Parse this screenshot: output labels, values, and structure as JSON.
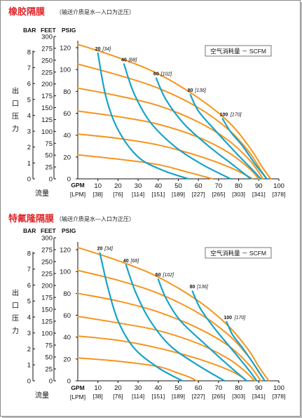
{
  "charts": [
    {
      "title": "橡胶隔膜",
      "note": "（输送介质是水—入口为正压）",
      "legend": "空气消耗量 － SCFM",
      "y_label_chars": [
        "出",
        "口",
        "压",
        "力"
      ],
      "x_label": "流量"
    },
    {
      "title": "特氟隆隔膜",
      "note": "（输送介质是水—入口为正压）",
      "legend": "空气消耗量 － SCFM",
      "y_label_chars": [
        "出",
        "口",
        "压",
        "力"
      ],
      "x_label": "流量"
    }
  ],
  "axis_headers": {
    "bar": "BAR",
    "feet": "FEET",
    "psig": "PSIG",
    "gpm": "GPM",
    "lpm": "[LPM]"
  },
  "bar_ticks": [
    "0",
    "1",
    "2",
    "3",
    "4",
    "5",
    "6",
    "7",
    "8"
  ],
  "feet_ticks": [
    "0",
    "25",
    "50",
    "75",
    "100",
    "125",
    "150",
    "175",
    "200",
    "225",
    "250",
    "275",
    "300"
  ],
  "psig_ticks": [
    "0",
    "20",
    "40",
    "60",
    "80",
    "100",
    "120"
  ],
  "gpm_ticks": [
    "10",
    "20",
    "30",
    "40",
    "50",
    "60",
    "70",
    "80",
    "90",
    "100"
  ],
  "lpm_ticks": [
    "[38]",
    "[76]",
    "[114]",
    "[151]",
    "[189]",
    "[227]",
    "[265]",
    "[303]",
    "[341]",
    "[378]"
  ],
  "colors": {
    "pressure_curve": "#f7941d",
    "air_curve": "#16a3c9",
    "title": "#e0282c"
  },
  "chart_data": [
    {
      "type": "line",
      "title": "橡胶隔膜",
      "xlabel": "流量",
      "ylabel": "出口压力",
      "xlim": [
        0,
        100
      ],
      "ylim": [
        0,
        120
      ],
      "grid": false,
      "series": [
        {
          "points": [
            [
              0,
              123
            ],
            [
              20,
              111
            ],
            [
              40,
              96
            ],
            [
              60,
              74
            ],
            [
              75,
              52
            ],
            [
              85,
              30
            ],
            [
              92,
              10
            ],
            [
              96,
              0
            ]
          ]
        },
        {
          "points": [
            [
              0,
              105
            ],
            [
              20,
              95
            ],
            [
              40,
              83
            ],
            [
              60,
              65
            ],
            [
              75,
              45
            ],
            [
              85,
              25
            ],
            [
              91,
              8
            ],
            [
              94,
              0
            ]
          ]
        },
        {
          "points": [
            [
              0,
              83
            ],
            [
              20,
              76
            ],
            [
              40,
              67
            ],
            [
              60,
              52
            ],
            [
              75,
              35
            ],
            [
              85,
              18
            ],
            [
              90,
              6
            ],
            [
              92,
              0
            ]
          ]
        },
        {
          "points": [
            [
              0,
              62
            ],
            [
              20,
              57
            ],
            [
              40,
              50
            ],
            [
              60,
              38
            ],
            [
              75,
              24
            ],
            [
              85,
              10
            ],
            [
              90,
              0
            ]
          ]
        },
        {
          "points": [
            [
              0,
              41
            ],
            [
              20,
              37
            ],
            [
              40,
              31
            ],
            [
              60,
              21
            ],
            [
              75,
              11
            ],
            [
              83,
              4
            ],
            [
              87,
              0
            ]
          ]
        },
        {
          "points": [
            [
              0,
              22
            ],
            [
              20,
              18
            ],
            [
              40,
              13
            ],
            [
              55,
              6
            ],
            [
              63,
              2
            ],
            [
              67,
              0
            ]
          ]
        },
        {
          "name": "20 [34]",
          "points": [
            [
              10,
              115
            ],
            [
              14,
              75
            ],
            [
              20,
              45
            ],
            [
              30,
              20
            ],
            [
              42,
              8
            ],
            [
              55,
              0
            ]
          ]
        },
        {
          "name": "40 [68]",
          "points": [
            [
              23,
              105
            ],
            [
              28,
              78
            ],
            [
              36,
              52
            ],
            [
              48,
              30
            ],
            [
              62,
              13
            ],
            [
              76,
              0
            ]
          ]
        },
        {
          "name": "60 [102]",
          "points": [
            [
              39,
              92
            ],
            [
              44,
              72
            ],
            [
              53,
              50
            ],
            [
              65,
              30
            ],
            [
              77,
              13
            ],
            [
              86,
              0
            ]
          ]
        },
        {
          "name": "80 [136]",
          "points": [
            [
              56,
              77
            ],
            [
              60,
              62
            ],
            [
              68,
              45
            ],
            [
              78,
              25
            ],
            [
              87,
              8
            ],
            [
              91,
              0
            ]
          ]
        },
        {
          "name": "100 [170]",
          "points": [
            [
              72,
              55
            ],
            [
              76,
              43
            ],
            [
              82,
              30
            ],
            [
              88,
              14
            ],
            [
              94,
              0
            ]
          ]
        }
      ]
    },
    {
      "type": "line",
      "title": "特氟隆隔膜",
      "xlabel": "流量",
      "ylabel": "出口压力",
      "xlim": [
        0,
        100
      ],
      "ylim": [
        0,
        120
      ],
      "grid": false,
      "series": [
        {
          "points": [
            [
              0,
              122
            ],
            [
              20,
              110
            ],
            [
              40,
              95
            ],
            [
              60,
              73
            ],
            [
              75,
              50
            ],
            [
              85,
              28
            ],
            [
              90,
              13
            ],
            [
              95,
              0
            ]
          ]
        },
        {
          "points": [
            [
              0,
              101
            ],
            [
              20,
              92
            ],
            [
              40,
              80
            ],
            [
              60,
              62
            ],
            [
              75,
              42
            ],
            [
              85,
              22
            ],
            [
              90,
              8
            ],
            [
              93,
              0
            ]
          ]
        },
        {
          "points": [
            [
              0,
              80
            ],
            [
              20,
              73
            ],
            [
              40,
              63
            ],
            [
              60,
              48
            ],
            [
              75,
              32
            ],
            [
              85,
              15
            ],
            [
              91,
              0
            ]
          ]
        },
        {
          "points": [
            [
              0,
              59
            ],
            [
              20,
              53
            ],
            [
              40,
              46
            ],
            [
              60,
              34
            ],
            [
              75,
              20
            ],
            [
              83,
              9
            ],
            [
              88,
              0
            ]
          ]
        },
        {
          "points": [
            [
              0,
              41
            ],
            [
              20,
              37
            ],
            [
              40,
              30
            ],
            [
              60,
              20
            ],
            [
              75,
              10
            ],
            [
              82,
              3
            ],
            [
              84,
              0
            ]
          ]
        },
        {
          "points": [
            [
              0,
              21
            ],
            [
              20,
              18
            ],
            [
              40,
              13
            ],
            [
              50,
              7
            ],
            [
              56,
              3
            ],
            [
              59,
              0
            ]
          ]
        },
        {
          "name": "20 [34]",
          "points": [
            [
              11,
              117
            ],
            [
              15,
              85
            ],
            [
              20,
              55
            ],
            [
              28,
              30
            ],
            [
              40,
              12
            ],
            [
              52,
              0
            ]
          ]
        },
        {
          "name": "40 [68]",
          "points": [
            [
              24,
              106
            ],
            [
              29,
              80
            ],
            [
              36,
              55
            ],
            [
              46,
              32
            ],
            [
              60,
              14
            ],
            [
              73,
              0
            ]
          ]
        },
        {
          "name": "60 [102]",
          "points": [
            [
              40,
              93
            ],
            [
              44,
              75
            ],
            [
              51,
              55
            ],
            [
              63,
              34
            ],
            [
              75,
              14
            ],
            [
              84,
              0
            ]
          ]
        },
        {
          "name": "80 [136]",
          "points": [
            [
              57,
              82
            ],
            [
              61,
              66
            ],
            [
              68,
              48
            ],
            [
              77,
              28
            ],
            [
              85,
              10
            ],
            [
              89,
              0
            ]
          ]
        },
        {
          "name": "100 [170]",
          "points": [
            [
              74,
              54
            ],
            [
              77,
              42
            ],
            [
              82,
              30
            ],
            [
              88,
              14
            ],
            [
              93,
              0
            ]
          ]
        }
      ]
    }
  ]
}
